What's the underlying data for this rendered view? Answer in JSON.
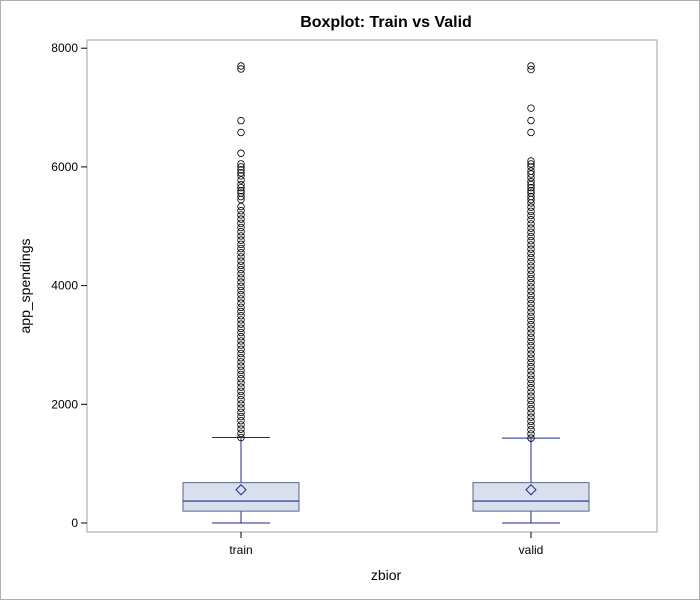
{
  "chart_data": {
    "type": "box",
    "title": "Boxplot: Train vs Valid",
    "xlabel": "zbior",
    "ylabel": "app_spendings",
    "categories": [
      "train",
      "valid"
    ],
    "yticks": [
      "0",
      "2000",
      "4000",
      "6000",
      "8000"
    ],
    "ylim": [
      -150,
      8150
    ],
    "grid": false,
    "legend": "none",
    "colors": {
      "box_fill": "#d8e0ee",
      "box_stroke": "#1c2a8c",
      "frame": "#a0a0a0"
    },
    "boxes": [
      {
        "name": "train",
        "min": 0,
        "q1": 200,
        "median": 370,
        "q3": 680,
        "max": 1440,
        "mean": 560,
        "outliers_dense_range": [
          1440,
          5400
        ],
        "outliers": [
          5450,
          5500,
          5560,
          5600,
          5650,
          5700,
          5780,
          5850,
          5900,
          5950,
          6000,
          6050,
          6230,
          6580,
          6780,
          7650,
          7700
        ]
      },
      {
        "name": "valid",
        "min": 0,
        "q1": 200,
        "median": 370,
        "q3": 680,
        "max": 1430,
        "mean": 560,
        "outliers_dense_range": [
          1430,
          5400
        ],
        "outliers": [
          5450,
          5500,
          5560,
          5600,
          5650,
          5700,
          5750,
          5820,
          5880,
          5930,
          6000,
          6050,
          6100,
          6580,
          6780,
          6990,
          7640,
          7700
        ]
      }
    ]
  }
}
